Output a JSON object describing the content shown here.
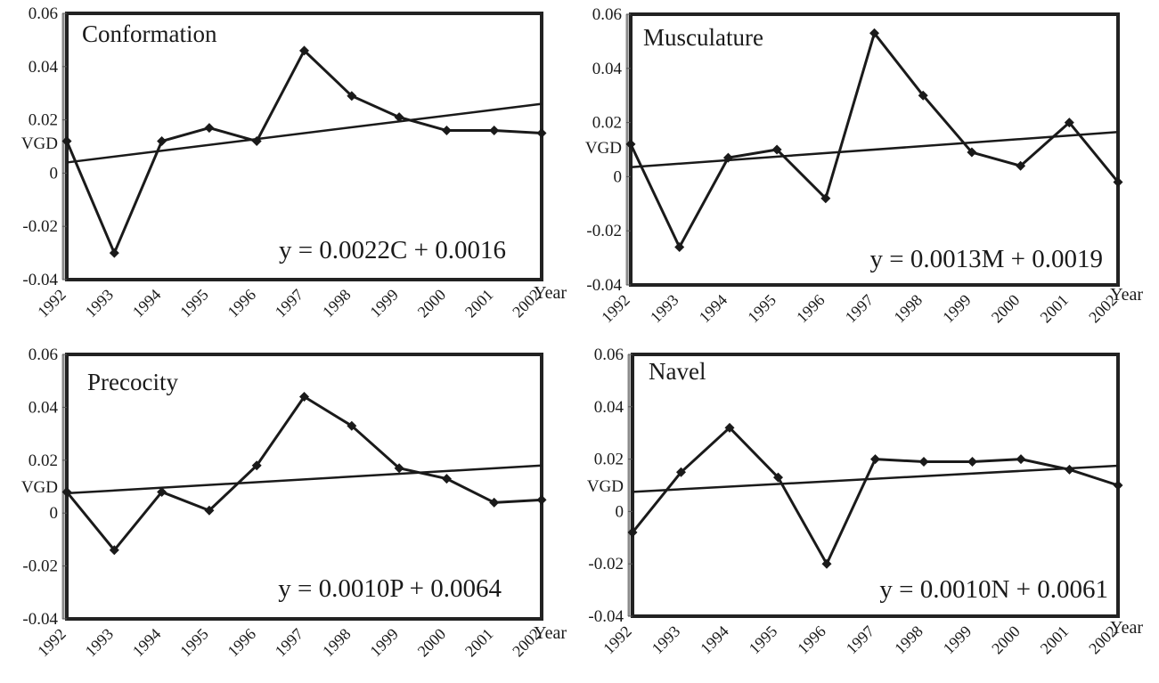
{
  "chart_data": [
    {
      "type": "line",
      "panel_label": "Conformation",
      "ylabel": "VGD",
      "xlabel": "Year",
      "categories": [
        "1992",
        "1993",
        "1994",
        "1995",
        "1996",
        "1997",
        "1998",
        "1999",
        "2000",
        "2001",
        "2002"
      ],
      "values": [
        0.012,
        -0.03,
        0.012,
        0.017,
        0.012,
        0.046,
        0.029,
        0.021,
        0.016,
        0.016,
        0.015
      ],
      "yticks": [
        "0.06",
        "0.04",
        "0.02",
        "0",
        "-0.02",
        "-0.04"
      ],
      "ylim": [
        -0.04,
        0.06
      ],
      "trendline": {
        "start": 0.004,
        "end": 0.026
      },
      "equation": "y = 0.0022C + 0.0016"
    },
    {
      "type": "line",
      "panel_label": "Musculature",
      "ylabel": "VGD",
      "xlabel": "Year",
      "categories": [
        "1992",
        "1993",
        "1994",
        "1995",
        "1996",
        "1997",
        "1998",
        "1999",
        "2000",
        "2001",
        "2002"
      ],
      "values": [
        0.012,
        -0.026,
        0.007,
        0.01,
        -0.008,
        0.053,
        0.03,
        0.009,
        0.004,
        0.02,
        -0.002
      ],
      "yticks": [
        "0.06",
        "0.04",
        "0.02",
        "0",
        "-0.02",
        "-0.04"
      ],
      "ylim": [
        -0.04,
        0.06
      ],
      "trendline": {
        "start": 0.0035,
        "end": 0.0165
      },
      "equation": "y = 0.0013M + 0.0019"
    },
    {
      "type": "line",
      "panel_label": "Precocity",
      "ylabel": "VGD",
      "xlabel": "Year",
      "categories": [
        "1992",
        "1993",
        "1994",
        "1995",
        "1996",
        "1997",
        "1998",
        "1999",
        "2000",
        "2001",
        "2002"
      ],
      "values": [
        0.008,
        -0.014,
        0.008,
        0.001,
        0.018,
        0.044,
        0.033,
        0.017,
        0.013,
        0.004,
        0.005
      ],
      "yticks": [
        "0.06",
        "0.04",
        "0.02",
        "0",
        "-0.02",
        "-0.04"
      ],
      "ylim": [
        -0.04,
        0.06
      ],
      "trendline": {
        "start": 0.0075,
        "end": 0.018
      },
      "equation": "y = 0.0010P + 0.0064"
    },
    {
      "type": "line",
      "panel_label": "Navel",
      "ylabel": "VGD",
      "xlabel": "Year",
      "categories": [
        "1992",
        "1993",
        "1994",
        "1995",
        "1996",
        "1997",
        "1998",
        "1999",
        "2000",
        "2001",
        "2002"
      ],
      "values": [
        -0.008,
        0.015,
        0.032,
        0.013,
        -0.02,
        0.02,
        0.019,
        0.019,
        0.02,
        0.016,
        0.01
      ],
      "yticks": [
        "0.06",
        "0.04",
        "0.02",
        "0",
        "-0.02",
        "-0.04"
      ],
      "ylim": [
        -0.04,
        0.06
      ],
      "trendline": {
        "start": 0.0075,
        "end": 0.0175
      },
      "equation": "y = 0.0010N + 0.0061"
    }
  ]
}
